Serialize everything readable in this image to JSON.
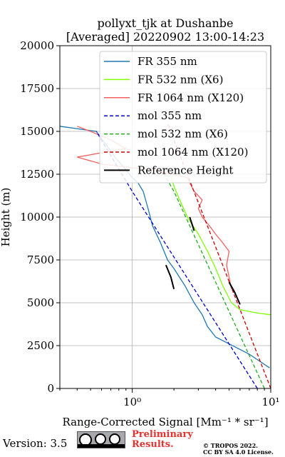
{
  "chart_data": {
    "type": "line",
    "title": "pollyxt_tjk at Dushanbe",
    "subtitle": "[Averaged] 20220902 13:00-14:23",
    "xlabel": "Range-Corrected Signal [Mm⁻¹ * sr⁻¹]",
    "ylabel": "Height (m)",
    "xscale": "log",
    "xlim": [
      0.3,
      10
    ],
    "ylim": [
      0,
      20000
    ],
    "xticks": [
      {
        "value": 1,
        "label": "10⁰"
      },
      {
        "value": 10,
        "label": "10¹"
      }
    ],
    "yticks": [
      0,
      2500,
      5000,
      7500,
      10000,
      12500,
      15000,
      17500,
      20000
    ],
    "grid": true,
    "legend_position": "top-right",
    "series": [
      {
        "name": "FR 355 nm",
        "color": "#1f77b4",
        "style": "solid",
        "points": [
          [
            9.8,
            1200
          ],
          [
            7.0,
            2000
          ],
          [
            5.0,
            2600
          ],
          [
            4.0,
            3000
          ],
          [
            3.5,
            3600
          ],
          [
            3.2,
            4300
          ],
          [
            2.8,
            5000
          ],
          [
            2.4,
            6000
          ],
          [
            2.0,
            7000
          ],
          [
            1.8,
            7500
          ],
          [
            1.6,
            8500
          ],
          [
            1.4,
            9500
          ],
          [
            1.3,
            10500
          ],
          [
            1.2,
            11500
          ],
          [
            1.1,
            12000
          ],
          [
            1.0,
            12300
          ],
          [
            0.85,
            13000
          ],
          [
            0.75,
            13500
          ],
          [
            0.65,
            14200
          ],
          [
            0.55,
            15000
          ],
          [
            0.3,
            15300
          ]
        ]
      },
      {
        "name": "FR 532 nm (X6)",
        "color": "#7fff00",
        "style": "solid",
        "points": [
          [
            10.0,
            4300
          ],
          [
            8.0,
            4400
          ],
          [
            6.0,
            4600
          ],
          [
            5.2,
            5000
          ],
          [
            4.5,
            6000
          ],
          [
            4.0,
            7000
          ],
          [
            3.5,
            8000
          ],
          [
            3.0,
            9000
          ],
          [
            2.5,
            10000
          ],
          [
            2.2,
            11000
          ],
          [
            2.0,
            11800
          ],
          [
            1.9,
            12400
          ]
        ]
      },
      {
        "name": "FR 1064 nm (X120)",
        "color": "#f06060",
        "style": "solid",
        "points": [
          [
            5.2,
            5800
          ],
          [
            5.0,
            6500
          ],
          [
            4.8,
            7200
          ],
          [
            5.0,
            8000
          ],
          [
            4.5,
            8500
          ],
          [
            4.0,
            9000
          ],
          [
            3.6,
            9500
          ],
          [
            3.2,
            10000
          ],
          [
            3.0,
            10500
          ],
          [
            3.2,
            11000
          ],
          [
            2.8,
            11500
          ],
          [
            2.6,
            12000
          ],
          [
            2.5,
            12300
          ],
          [
            1.5,
            12700
          ],
          [
            0.6,
            13100
          ],
          [
            0.4,
            13500
          ],
          [
            0.9,
            14000
          ],
          [
            0.7,
            14500
          ],
          [
            0.5,
            15000
          ],
          [
            0.4,
            15300
          ]
        ]
      },
      {
        "name": "mol 355 nm",
        "color": "#0000cc",
        "style": "dashed",
        "points": [
          [
            8.0,
            0
          ],
          [
            1.0,
            11500
          ],
          [
            0.55,
            15000
          ]
        ]
      },
      {
        "name": "mol 532 nm (X6)",
        "color": "#22aa22",
        "style": "dashed",
        "points": [
          [
            9.0,
            0
          ],
          [
            2.0,
            11500
          ],
          [
            1.7,
            12500
          ]
        ]
      },
      {
        "name": "mol 1064 nm (X120)",
        "color": "#cc0000",
        "style": "dashed",
        "points": [
          [
            10.0,
            0
          ],
          [
            2.0,
            14500
          ],
          [
            1.8,
            15500
          ]
        ]
      },
      {
        "name": "Reference Height",
        "color": "#000000",
        "style": "solid",
        "segments": [
          [
            [
              1.75,
              7200
            ],
            [
              1.9,
              6500
            ],
            [
              2.0,
              5800
            ]
          ],
          [
            [
              2.6,
              10000
            ],
            [
              2.8,
              9200
            ]
          ],
          [
            [
              5.0,
              6200
            ],
            [
              5.5,
              5600
            ],
            [
              6.0,
              4900
            ]
          ]
        ]
      }
    ]
  },
  "footer": {
    "version": "Version: 3.5",
    "license_badge": "CC BY SA",
    "preliminary_line1": "Preliminary",
    "preliminary_line2": "Results.",
    "copyright_line1": "© TROPOS 2022.",
    "copyright_line2": "CC BY SA 4.0 License."
  }
}
